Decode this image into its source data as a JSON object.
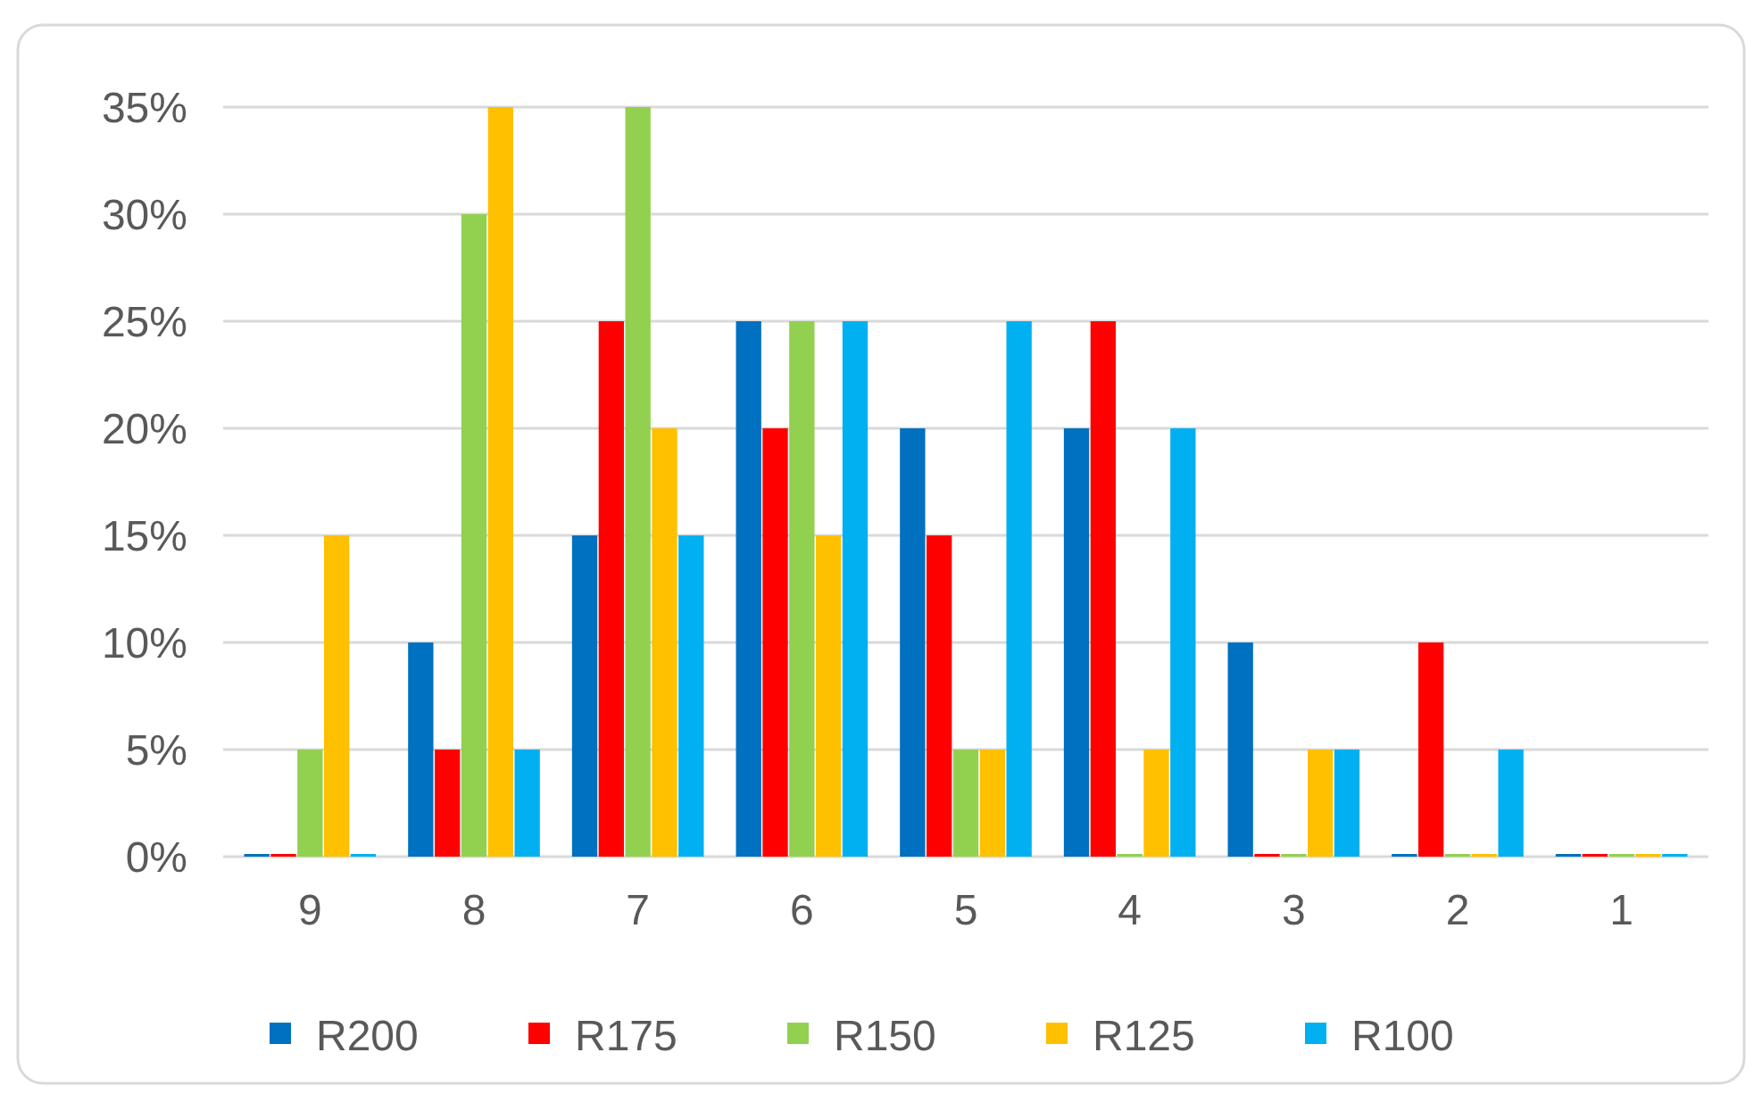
{
  "chart_data": {
    "type": "bar",
    "categories": [
      "9",
      "8",
      "7",
      "6",
      "5",
      "4",
      "3",
      "2",
      "1"
    ],
    "series": [
      {
        "name": "R200",
        "color": "#0070c0",
        "values": [
          0,
          10,
          15,
          25,
          20,
          20,
          10,
          0,
          0
        ]
      },
      {
        "name": "R175",
        "color": "#ff0000",
        "values": [
          0,
          5,
          25,
          20,
          15,
          25,
          0,
          10,
          0
        ]
      },
      {
        "name": "R150",
        "color": "#92d050",
        "values": [
          5,
          30,
          35,
          25,
          5,
          0,
          0,
          0,
          0
        ]
      },
      {
        "name": "R125",
        "color": "#ffc000",
        "values": [
          15,
          35,
          20,
          15,
          5,
          5,
          5,
          0,
          0
        ]
      },
      {
        "name": "R100",
        "color": "#00b0f0",
        "values": [
          0,
          5,
          15,
          25,
          25,
          20,
          5,
          5,
          0
        ]
      }
    ],
    "ylim": [
      0,
      35
    ],
    "yticks": [
      {
        "value": 0,
        "label": "0%"
      },
      {
        "value": 5,
        "label": "5%"
      },
      {
        "value": 10,
        "label": "10%"
      },
      {
        "value": 15,
        "label": "15%"
      },
      {
        "value": 20,
        "label": "20%"
      },
      {
        "value": 25,
        "label": "25%"
      },
      {
        "value": 30,
        "label": "30%"
      },
      {
        "value": 35,
        "label": "35%"
      }
    ],
    "grid": "y",
    "legend": "bottom"
  }
}
